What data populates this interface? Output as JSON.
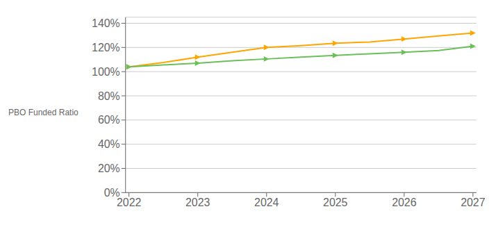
{
  "chart_data": {
    "type": "line",
    "y_label": "PBO Funded Ratio",
    "xlim": [
      2021.95,
      2027.05
    ],
    "xticks": [
      2022,
      2023,
      2024,
      2025,
      2026,
      2027
    ],
    "ylim": [
      0,
      1.45
    ],
    "yticks": [
      {
        "value": 0,
        "label": "0%"
      },
      {
        "value": 0.2,
        "label": "20%"
      },
      {
        "value": 0.4,
        "label": "40%"
      },
      {
        "value": 0.6,
        "label": "60%"
      },
      {
        "value": 0.8,
        "label": "80%"
      },
      {
        "value": 1.0,
        "label": "100%"
      },
      {
        "value": 1.2,
        "label": "120%"
      },
      {
        "value": 1.4,
        "label": "140%"
      }
    ],
    "grid": true,
    "series": [
      {
        "type": "line",
        "color": "#FFA500",
        "x": [
          2022,
          2022.5,
          2023,
          2023.5,
          2024,
          2024.5,
          2025,
          2025.5,
          2026,
          2026.5,
          2027
        ],
        "values": [
          1.04,
          1.075,
          1.12,
          1.16,
          1.2,
          1.215,
          1.235,
          1.245,
          1.27,
          1.295,
          1.32
        ]
      },
      {
        "type": "scatter",
        "color": "#FFA500",
        "marker": "triangle_right",
        "x": [
          2022,
          2023,
          2024,
          2025,
          2026,
          2027
        ],
        "values": [
          1.04,
          1.12,
          1.2,
          1.235,
          1.27,
          1.32
        ]
      },
      {
        "type": "line",
        "color": "#6BBF59",
        "x": [
          2022,
          2022.5,
          2023,
          2023.5,
          2024,
          2024.5,
          2025,
          2025.5,
          2026,
          2026.5,
          2027
        ],
        "values": [
          1.04,
          1.055,
          1.07,
          1.09,
          1.105,
          1.12,
          1.135,
          1.148,
          1.16,
          1.175,
          1.21
        ]
      },
      {
        "type": "scatter",
        "color": "#6BBF59",
        "marker": "triangle_right",
        "x": [
          2022,
          2023,
          2024,
          2025,
          2026,
          2027
        ],
        "values": [
          1.04,
          1.07,
          1.105,
          1.135,
          1.16,
          1.21
        ]
      }
    ]
  }
}
